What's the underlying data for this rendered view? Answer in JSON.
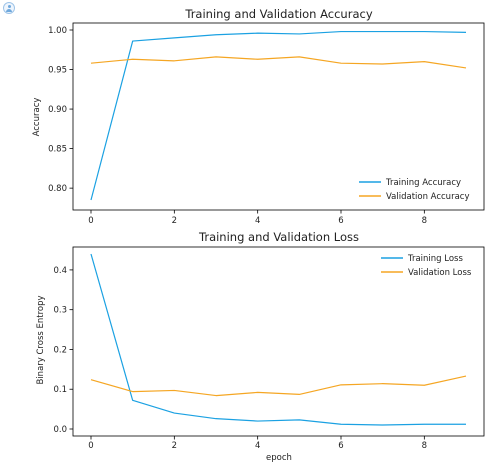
{
  "colors": {
    "training": "#1ba1e2",
    "validation": "#f5a623"
  },
  "corner_icon": "user-icon",
  "chart_data": [
    {
      "type": "line",
      "title": "Training and Validation Accuracy",
      "xlabel": "",
      "ylabel": "Accuracy",
      "xlim": [
        0,
        9
      ],
      "ylim": [
        0.785,
        1.0
      ],
      "x": [
        0,
        1,
        2,
        3,
        4,
        5,
        6,
        7,
        8,
        9
      ],
      "xticks": [
        0,
        2,
        4,
        6,
        8
      ],
      "xtick_labels": [
        "0",
        "2",
        "4",
        "6",
        "8"
      ],
      "yticks": [
        0.8,
        0.85,
        0.9,
        0.95,
        1.0
      ],
      "ytick_labels": [
        "0.80",
        "0.85",
        "0.90",
        "0.95",
        "1.00"
      ],
      "grid": false,
      "legend_position": "lower-right",
      "series": [
        {
          "name": "Training Accuracy",
          "color_key": "training",
          "values": [
            0.785,
            0.986,
            0.99,
            0.994,
            0.996,
            0.995,
            0.998,
            0.998,
            0.998,
            0.997
          ]
        },
        {
          "name": "Validation Accuracy",
          "color_key": "validation",
          "values": [
            0.958,
            0.963,
            0.961,
            0.966,
            0.963,
            0.966,
            0.958,
            0.957,
            0.96,
            0.952
          ]
        }
      ]
    },
    {
      "type": "line",
      "title": "Training and Validation Loss",
      "xlabel": "epoch",
      "ylabel": "Binary Cross Entropy",
      "xlim": [
        0,
        9
      ],
      "ylim": [
        0.0,
        0.44
      ],
      "x": [
        0,
        1,
        2,
        3,
        4,
        5,
        6,
        7,
        8,
        9
      ],
      "xticks": [
        0,
        2,
        4,
        6,
        8
      ],
      "xtick_labels": [
        "0",
        "2",
        "4",
        "6",
        "8"
      ],
      "yticks": [
        0.0,
        0.1,
        0.2,
        0.3,
        0.4
      ],
      "ytick_labels": [
        "0.0",
        "0.1",
        "0.2",
        "0.3",
        "0.4"
      ],
      "grid": false,
      "legend_position": "upper-right",
      "series": [
        {
          "name": "Training Loss",
          "color_key": "training",
          "values": [
            0.44,
            0.072,
            0.04,
            0.026,
            0.02,
            0.023,
            0.012,
            0.01,
            0.012,
            0.012
          ]
        },
        {
          "name": "Validation Loss",
          "color_key": "validation",
          "values": [
            0.124,
            0.094,
            0.097,
            0.084,
            0.092,
            0.087,
            0.111,
            0.114,
            0.11,
            0.133
          ]
        }
      ]
    }
  ]
}
